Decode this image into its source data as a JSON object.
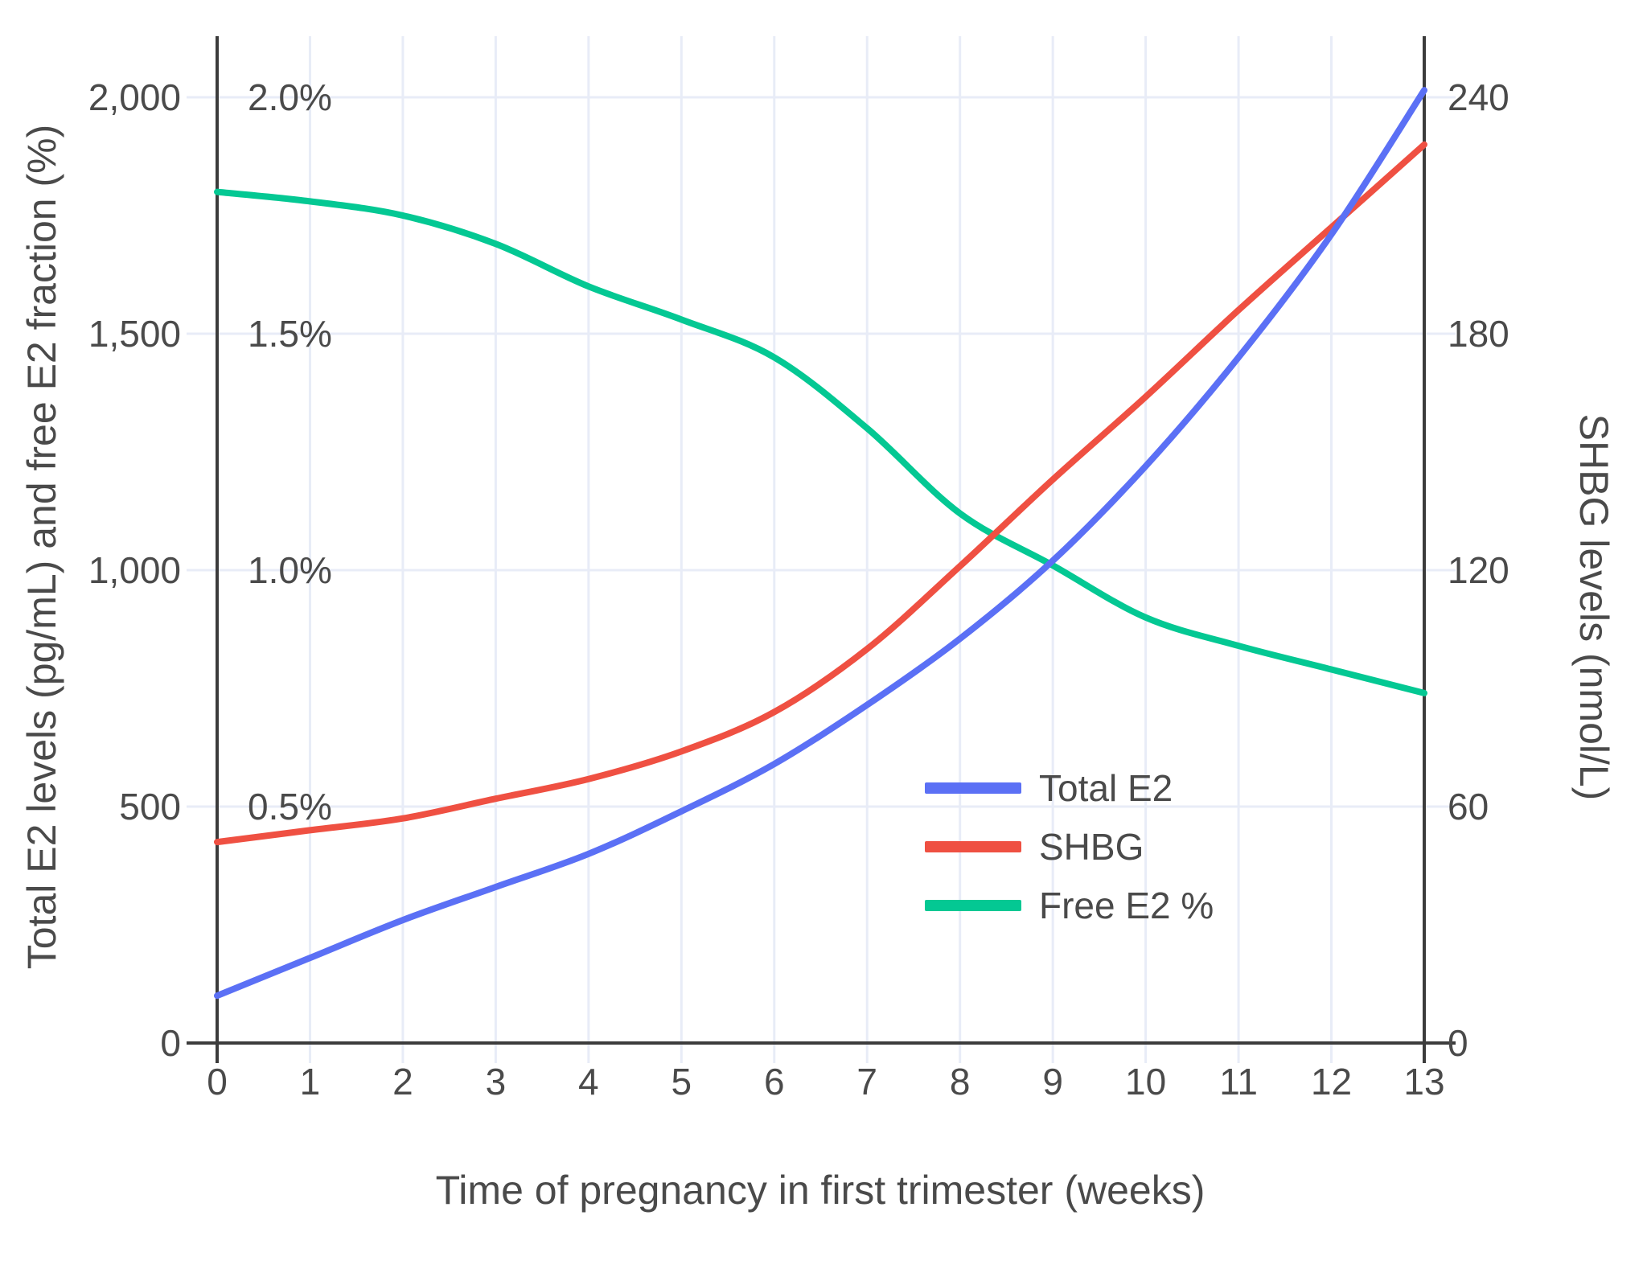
{
  "chart_data": {
    "type": "line",
    "title": "",
    "x_axis": {
      "title": "Time of pregnancy in first trimester (weeks)",
      "ticks": [
        {
          "label": "0",
          "value": 0
        },
        {
          "label": "1",
          "value": 1
        },
        {
          "label": "2",
          "value": 2
        },
        {
          "label": "3",
          "value": 3
        },
        {
          "label": "4",
          "value": 4
        },
        {
          "label": "5",
          "value": 5
        },
        {
          "label": "6",
          "value": 6
        },
        {
          "label": "7",
          "value": 7
        },
        {
          "label": "8",
          "value": 8
        },
        {
          "label": "9",
          "value": 9
        },
        {
          "label": "10",
          "value": 10
        },
        {
          "label": "11",
          "value": 11
        },
        {
          "label": "12",
          "value": 12
        },
        {
          "label": "13",
          "value": 13
        }
      ],
      "range": [
        0,
        13
      ]
    },
    "left_axis": {
      "title": "Total E2 levels (pg/mL) and free E2 fraction (%)",
      "ticks": [
        {
          "label": "0",
          "value": 0
        },
        {
          "label": "500",
          "value": 500
        },
        {
          "label": "1,000",
          "value": 1000
        },
        {
          "label": "1,500",
          "value": 1500
        },
        {
          "label": "2,000",
          "value": 2000
        }
      ],
      "pct_ticks": [
        {
          "label": "0.5%",
          "value": 0.5
        },
        {
          "label": "1.0%",
          "value": 1.0
        },
        {
          "label": "1.5%",
          "value": 1.5
        },
        {
          "label": "2.0%",
          "value": 2.0
        }
      ],
      "range": [
        0,
        2130
      ]
    },
    "right_axis": {
      "title": "SHBG levels (nmol/L)",
      "ticks": [
        {
          "label": "0",
          "value": 0
        },
        {
          "label": "60",
          "value": 60
        },
        {
          "label": "120",
          "value": 120
        },
        {
          "label": "180",
          "value": 180
        },
        {
          "label": "240",
          "value": 240
        }
      ],
      "range": [
        0,
        255
      ]
    },
    "x": [
      0,
      1,
      2,
      3,
      4,
      5,
      6,
      7,
      8,
      9,
      10,
      11,
      12,
      13
    ],
    "series": [
      {
        "name": "Free E2 %",
        "axis": "percent",
        "color": "#04c893",
        "values": [
          1.8,
          1.78,
          1.75,
          1.69,
          1.6,
          1.53,
          1.45,
          1.3,
          1.12,
          1.01,
          0.9,
          0.84,
          0.79,
          0.74
        ]
      },
      {
        "name": "SHBG",
        "axis": "right",
        "color": "#ef5042",
        "values": [
          51,
          54,
          57,
          62,
          67,
          74,
          84,
          100,
          121,
          143,
          164,
          186,
          207,
          228
        ]
      },
      {
        "name": "Total E2",
        "axis": "left",
        "color": "#5b70f5",
        "values": [
          100,
          180,
          260,
          330,
          400,
          490,
          590,
          715,
          855,
          1020,
          1220,
          1450,
          1710,
          2015
        ]
      }
    ],
    "legend": {
      "position": "inside-right-middle",
      "entries": [
        {
          "label": "Total E2",
          "color": "#5b70f5"
        },
        {
          "label": "SHBG",
          "color": "#ef5042"
        },
        {
          "label": "Free E2 %",
          "color": "#04c893"
        }
      ]
    },
    "grid": true
  },
  "colors": {
    "background": "#ffffff",
    "gridline": "#e8ecf7",
    "axis_line": "#3c3c3c",
    "tick_text": "#4a4a4a"
  }
}
